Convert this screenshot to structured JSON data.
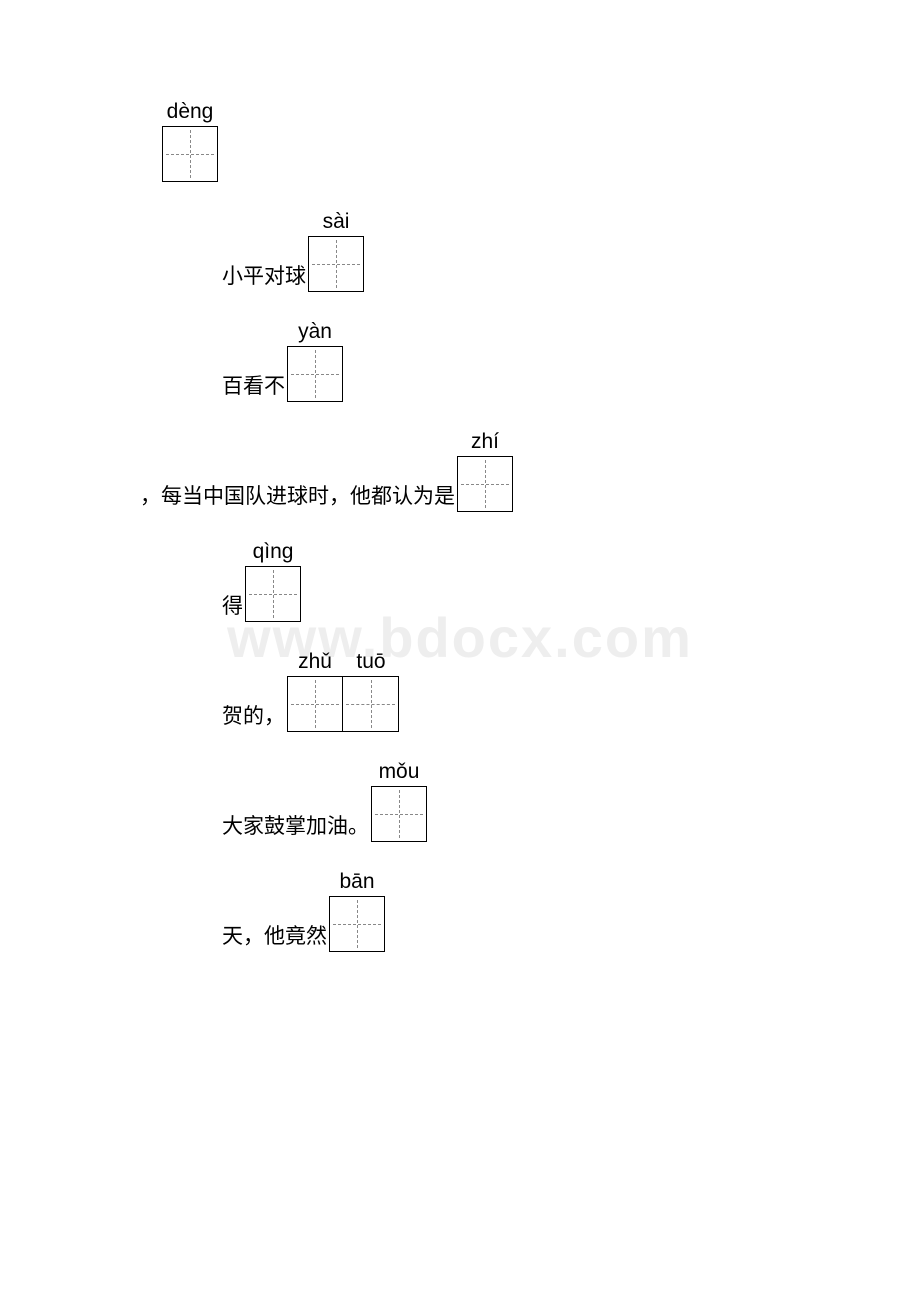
{
  "page": {
    "background_color": "#ffffff",
    "text_color": "#000000",
    "grid_border_color": "#000000",
    "grid_dash_color": "#888888",
    "watermark_color": "#eeeeee",
    "body_fontsize": 21,
    "pinyin_fontsize": 21,
    "watermark_fontsize": 56
  },
  "watermark": "www.bdocx.com",
  "lines": [
    {
      "indent": "indent-1",
      "pre": "",
      "pinyin": [
        "dèng"
      ],
      "post": ""
    },
    {
      "indent": "indent-2",
      "pre": "小平对球",
      "pinyin": [
        "sài"
      ],
      "post": ""
    },
    {
      "indent": "indent-2",
      "pre": "百看不",
      "pinyin": [
        "yàn"
      ],
      "post": ""
    },
    {
      "indent": "indent-3",
      "pre": "，每当中国队进球时，他都认为是",
      "pinyin": [
        "zhí"
      ],
      "post": ""
    },
    {
      "indent": "indent-2",
      "pre": "得",
      "pinyin": [
        "qìng"
      ],
      "post": ""
    },
    {
      "indent": "indent-2",
      "pre": "贺的，",
      "pinyin": [
        "zhǔ",
        "tuō"
      ],
      "post": ""
    },
    {
      "indent": "indent-2",
      "pre": "大家鼓掌加油。",
      "pinyin": [
        "mǒu"
      ],
      "post": ""
    },
    {
      "indent": "indent-2",
      "pre": "天，他竟然",
      "pinyin": [
        "bān"
      ],
      "post": ""
    }
  ]
}
